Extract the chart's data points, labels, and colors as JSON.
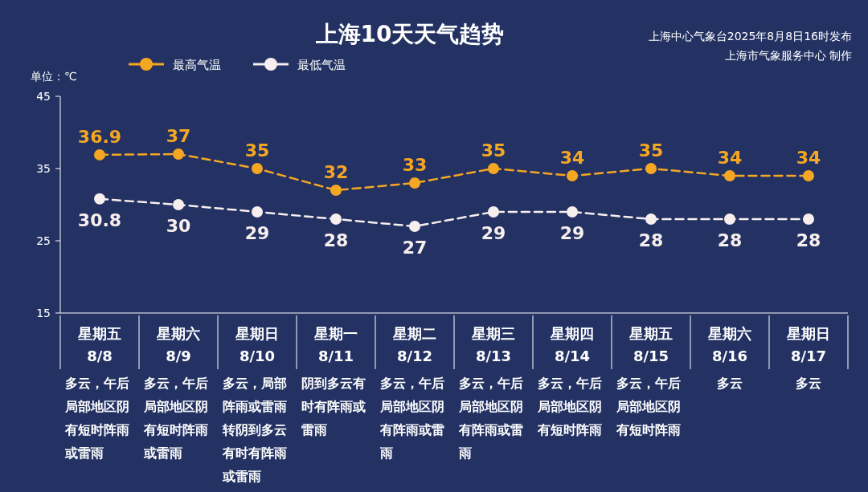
{
  "chart_data": {
    "type": "line",
    "title": "上海10天天气趋势",
    "ylabel": "单位：℃",
    "categories": [
      "星期五\n8/8",
      "星期六\n8/9",
      "星期日\n8/10",
      "星期一\n8/11",
      "星期二\n8/12",
      "星期三\n8/13",
      "星期四\n8/14",
      "星期五\n8/15",
      "星期六\n8/16",
      "星期日\n8/17"
    ],
    "series": [
      {
        "name": "最高气温",
        "color": "#f5a623",
        "values": [
          36.9,
          37,
          35,
          32,
          33,
          35,
          34,
          35,
          34,
          34
        ]
      },
      {
        "name": "最低气温",
        "color": "#f7eeee",
        "values": [
          30.8,
          30,
          29,
          28,
          27,
          29,
          29,
          28,
          28,
          28
        ]
      }
    ],
    "ylim": [
      15,
      45
    ],
    "yticks": [
      15,
      25,
      35,
      45
    ],
    "grid": false,
    "legend": "top left",
    "marker": "circle",
    "line_style": "dashed",
    "data_labels": true,
    "annotations": [
      "上海中心气象台2025年8月8日16时发布",
      "上海市气象服务中心 制作",
      "多云，午后局部地区阴有短时阵雨或雷雨",
      "多云，午后局部地区阴有短时阵雨或雷雨",
      "多云，局部阵雨或雷雨转阴到多云有时有阵雨或雷雨",
      "阴到多云有时有阵雨或雷雨",
      "多云，午后局部地区阴有阵雨或雷雨",
      "多云，午后局部地区阴有阵雨或雷雨",
      "多云，午后局部地区阴有短时阵雨",
      "多云，午后局部地区阴有短时阵雨",
      "多云",
      "多云"
    ]
  }
}
